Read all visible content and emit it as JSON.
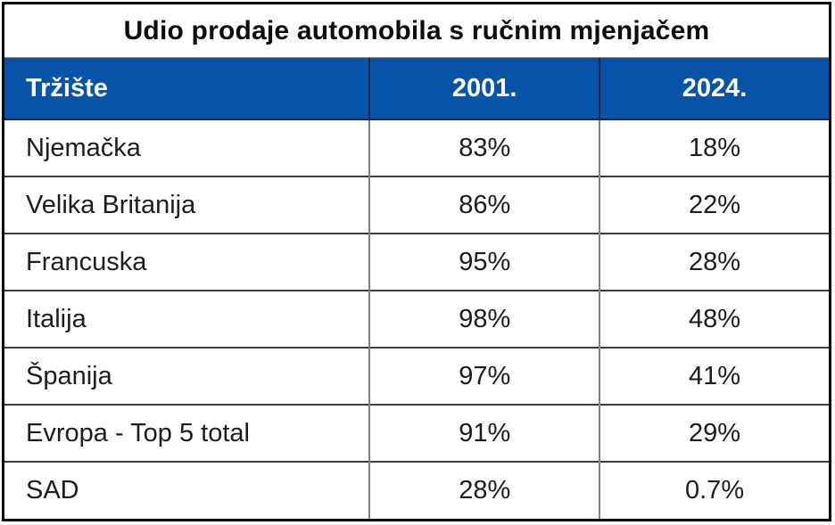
{
  "title": "Udio prodaje automobila s ručnim mjenjačem",
  "colors": {
    "header_bg": "#0853a8",
    "header_text": "#ffffff",
    "outer_border": "#000000",
    "horizontal_grid": "#3d3d3d",
    "vertical_grid": "#808080",
    "cell_text": "#1c1c21",
    "title_text": "#0d0d0d"
  },
  "table": {
    "columns": [
      "Tržište",
      "2001.",
      "2024."
    ],
    "rows": [
      {
        "market": "Njemačka",
        "y2001": "83%",
        "y2024": "18%"
      },
      {
        "market": "Velika Britanija",
        "y2001": "86%",
        "y2024": "22%"
      },
      {
        "market": "Francuska",
        "y2001": "95%",
        "y2024": "28%"
      },
      {
        "market": "Italija",
        "y2001": "98%",
        "y2024": "48%"
      },
      {
        "market": "Španija",
        "y2001": "97%",
        "y2024": "41%"
      },
      {
        "market": "Evropa - Top 5 total",
        "y2001": "91%",
        "y2024": "29%"
      },
      {
        "market": "SAD",
        "y2001": "28%",
        "y2024": "0.7%"
      }
    ]
  },
  "chart_data": {
    "type": "table",
    "title": "Udio prodaje automobila s ručnim mjenjačem",
    "categories": [
      "Njemačka",
      "Velika Britanija",
      "Francuska",
      "Italija",
      "Španija",
      "Evropa - Top 5 total",
      "SAD"
    ],
    "series": [
      {
        "name": "2001.",
        "values": [
          83,
          86,
          95,
          98,
          97,
          91,
          28
        ]
      },
      {
        "name": "2024.",
        "values": [
          18,
          22,
          28,
          48,
          41,
          29,
          0.7
        ]
      }
    ],
    "unit": "%"
  }
}
